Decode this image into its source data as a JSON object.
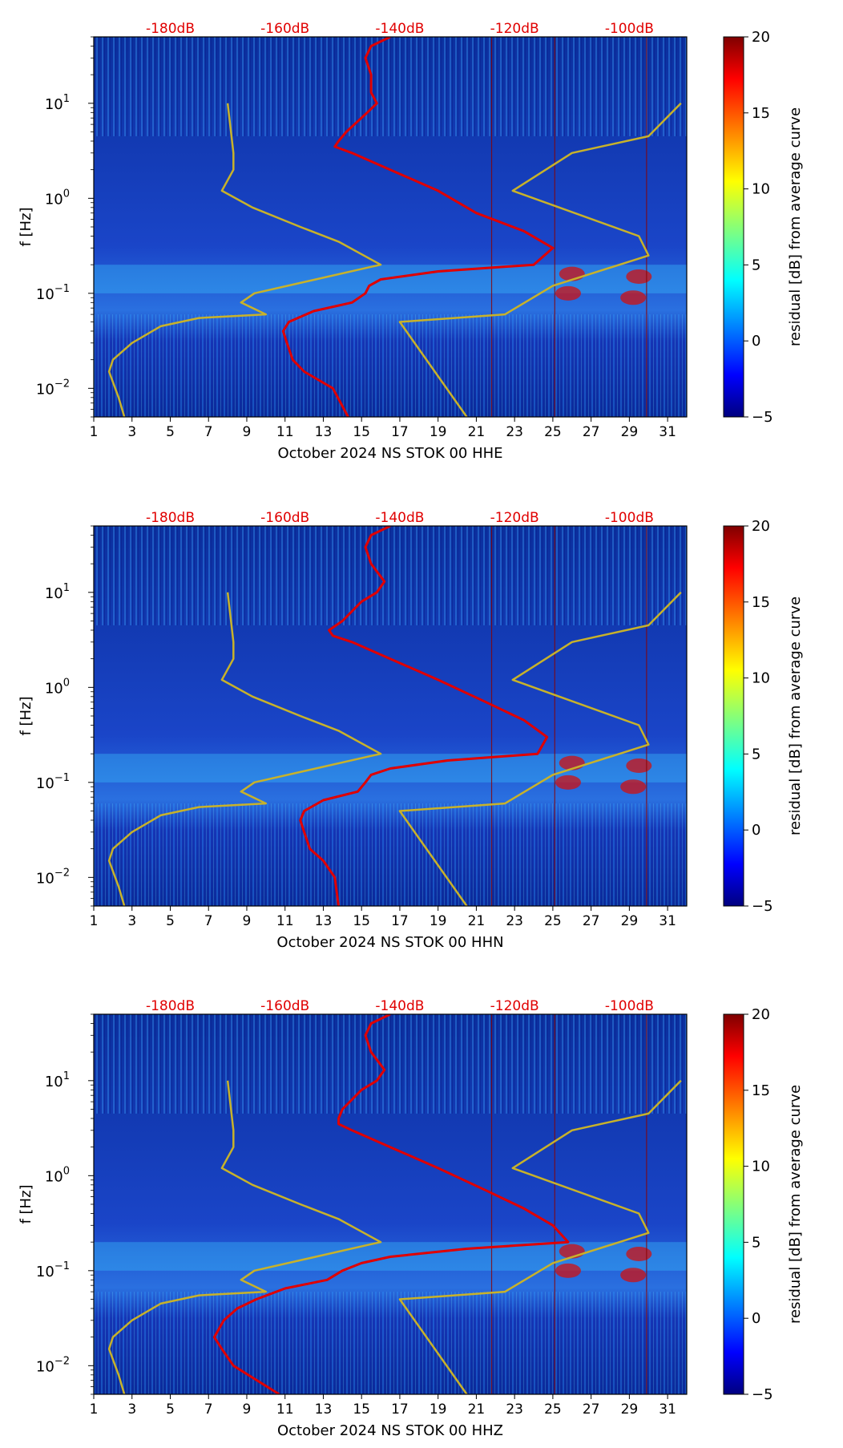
{
  "chart_data": [
    {
      "type": "heatmap",
      "xlabel": "October 2024 NS STOK 00 HHE",
      "ylabel": "f [Hz]",
      "x_ticks": [
        "1",
        "3",
        "5",
        "7",
        "9",
        "11",
        "13",
        "15",
        "17",
        "19",
        "21",
        "23",
        "25",
        "27",
        "29",
        "31"
      ],
      "y_ticks": [
        {
          "label": "10",
          "exp": "1",
          "value": 10
        },
        {
          "label": "10",
          "exp": "0",
          "value": 1
        },
        {
          "label": "10",
          "exp": "−1",
          "value": 0.1
        },
        {
          "label": "10",
          "exp": "−2",
          "value": 0.01
        }
      ],
      "top_labels": [
        "-180dB",
        "-160dB",
        "-140dB",
        "-120dB",
        "-100dB"
      ],
      "top_label_days": [
        5,
        11,
        17,
        23,
        29
      ],
      "xlim": [
        1,
        32
      ],
      "ylim": [
        0.005,
        50
      ],
      "colorbar": {
        "label": "residual [dB] from average curve",
        "ticks": [
          "20",
          "15",
          "10",
          "5",
          "0",
          "−5"
        ],
        "range": [
          -5,
          20
        ]
      },
      "series": [
        {
          "name": "average curve (red)",
          "color": "#e00000",
          "days": [
            16.5,
            15.5,
            15.2,
            15.5,
            15.5,
            15.8,
            15.3,
            14.2,
            13.8,
            13.6,
            14.5,
            16.5,
            19,
            21,
            23.5,
            25,
            24,
            19,
            16,
            15.4,
            15.2,
            14.5,
            12.5,
            11.2,
            10.9,
            11.1,
            11.4,
            12,
            13.5,
            14.3
          ],
          "freqs": [
            50,
            40,
            30,
            20,
            13,
            10,
            8,
            5,
            4,
            3.5,
            3,
            2,
            1.2,
            0.7,
            0.45,
            0.3,
            0.2,
            0.17,
            0.14,
            0.12,
            0.1,
            0.08,
            0.065,
            0.05,
            0.04,
            0.03,
            0.02,
            0.015,
            0.01,
            0.005
          ]
        },
        {
          "name": "model curve left (yellow)",
          "color": "#c8b22a",
          "days": [
            8.0,
            8.3,
            8.3,
            7.7,
            9.3,
            11.8,
            13.8,
            16.0,
            15.5,
            9.4,
            8.7,
            10.0,
            6.5,
            4.5,
            3.0,
            2.0,
            1.8,
            2.3,
            2.6
          ],
          "freqs": [
            10,
            3,
            2,
            1.2,
            0.8,
            0.5,
            0.35,
            0.2,
            0.19,
            0.1,
            0.08,
            0.06,
            0.055,
            0.045,
            0.03,
            0.02,
            0.015,
            0.008,
            0.005
          ]
        },
        {
          "name": "model curve right (yellow)",
          "color": "#c8b22a",
          "days": [
            31.7,
            30.0,
            26.0,
            22.9,
            29.5,
            30.0,
            25.0,
            22.5,
            17.0,
            20.5
          ],
          "freqs": [
            10,
            4.5,
            3,
            1.2,
            0.4,
            0.25,
            0.12,
            0.06,
            0.05,
            0.005
          ]
        }
      ]
    },
    {
      "type": "heatmap",
      "xlabel": "October 2024 NS STOK 00 HHN",
      "ylabel": "f [Hz]",
      "x_ticks": [
        "1",
        "3",
        "5",
        "7",
        "9",
        "11",
        "13",
        "15",
        "17",
        "19",
        "21",
        "23",
        "25",
        "27",
        "29",
        "31"
      ],
      "y_ticks": [
        {
          "label": "10",
          "exp": "1",
          "value": 10
        },
        {
          "label": "10",
          "exp": "0",
          "value": 1
        },
        {
          "label": "10",
          "exp": "−1",
          "value": 0.1
        },
        {
          "label": "10",
          "exp": "−2",
          "value": 0.01
        }
      ],
      "top_labels": [
        "-180dB",
        "-160dB",
        "-140dB",
        "-120dB",
        "-100dB"
      ],
      "top_label_days": [
        5,
        11,
        17,
        23,
        29
      ],
      "xlim": [
        1,
        32
      ],
      "ylim": [
        0.005,
        50
      ],
      "colorbar": {
        "label": "residual [dB] from average curve",
        "ticks": [
          "20",
          "15",
          "10",
          "5",
          "0",
          "−5"
        ],
        "range": [
          -5,
          20
        ]
      },
      "series": [
        {
          "name": "average curve (red)",
          "color": "#e00000",
          "days": [
            16.5,
            15.5,
            15.2,
            15.5,
            16.2,
            15.8,
            15.0,
            14.0,
            13.3,
            13.5,
            14.5,
            16.5,
            19,
            21.5,
            23.5,
            24.7,
            24.2,
            19.5,
            16.5,
            15.5,
            15.2,
            14.8,
            13.0,
            12.0,
            11.8,
            12.0,
            12.3,
            13.0,
            13.6,
            13.8
          ],
          "freqs": [
            50,
            40,
            30,
            20,
            13,
            10,
            8,
            5,
            4,
            3.5,
            3,
            2,
            1.2,
            0.7,
            0.45,
            0.3,
            0.2,
            0.17,
            0.14,
            0.12,
            0.1,
            0.08,
            0.065,
            0.05,
            0.04,
            0.03,
            0.02,
            0.015,
            0.01,
            0.005
          ]
        },
        {
          "name": "model curve left (yellow)",
          "color": "#c8b22a",
          "days": [
            8.0,
            8.3,
            8.3,
            7.7,
            9.3,
            11.8,
            13.8,
            16.0,
            15.5,
            9.4,
            8.7,
            10.0,
            6.5,
            4.5,
            3.0,
            2.0,
            1.8,
            2.3,
            2.6
          ],
          "freqs": [
            10,
            3,
            2,
            1.2,
            0.8,
            0.5,
            0.35,
            0.2,
            0.19,
            0.1,
            0.08,
            0.06,
            0.055,
            0.045,
            0.03,
            0.02,
            0.015,
            0.008,
            0.005
          ]
        },
        {
          "name": "model curve right (yellow)",
          "color": "#c8b22a",
          "days": [
            31.7,
            30.0,
            26.0,
            22.9,
            29.5,
            30.0,
            25.0,
            22.5,
            17.0,
            20.5
          ],
          "freqs": [
            10,
            4.5,
            3,
            1.2,
            0.4,
            0.25,
            0.12,
            0.06,
            0.05,
            0.005
          ]
        }
      ]
    },
    {
      "type": "heatmap",
      "xlabel": "October 2024 NS STOK 00 HHZ",
      "ylabel": "f [Hz]",
      "x_ticks": [
        "1",
        "3",
        "5",
        "7",
        "9",
        "11",
        "13",
        "15",
        "17",
        "19",
        "21",
        "23",
        "25",
        "27",
        "29",
        "31"
      ],
      "y_ticks": [
        {
          "label": "10",
          "exp": "1",
          "value": 10
        },
        {
          "label": "10",
          "exp": "0",
          "value": 1
        },
        {
          "label": "10",
          "exp": "−1",
          "value": 0.1
        },
        {
          "label": "10",
          "exp": "−2",
          "value": 0.01
        }
      ],
      "top_labels": [
        "-180dB",
        "-160dB",
        "-140dB",
        "-120dB",
        "-100dB"
      ],
      "top_label_days": [
        5,
        11,
        17,
        23,
        29
      ],
      "xlim": [
        1,
        32
      ],
      "ylim": [
        0.005,
        50
      ],
      "colorbar": {
        "label": "residual [dB] from average curve",
        "ticks": [
          "20",
          "15",
          "10",
          "5",
          "0",
          "−5"
        ],
        "range": [
          -5,
          20
        ]
      },
      "series": [
        {
          "name": "average curve (red)",
          "color": "#e00000",
          "days": [
            16.5,
            15.5,
            15.2,
            15.5,
            16.2,
            15.8,
            15.0,
            14.0,
            13.8,
            13.8,
            14.5,
            16.5,
            19,
            21.5,
            23.5,
            25,
            25.8,
            20.5,
            16.5,
            15,
            14,
            13.2,
            11.0,
            9.5,
            8.5,
            7.8,
            7.3,
            7.7,
            8.3,
            10.7
          ],
          "freqs": [
            50,
            40,
            30,
            20,
            13,
            10,
            8,
            5,
            4,
            3.5,
            3,
            2,
            1.2,
            0.7,
            0.45,
            0.3,
            0.2,
            0.17,
            0.14,
            0.12,
            0.1,
            0.08,
            0.065,
            0.05,
            0.04,
            0.03,
            0.02,
            0.015,
            0.01,
            0.005
          ]
        },
        {
          "name": "model curve left (yellow)",
          "color": "#c8b22a",
          "days": [
            8.0,
            8.3,
            8.3,
            7.7,
            9.3,
            11.8,
            13.8,
            16.0,
            15.5,
            9.4,
            8.7,
            10.0,
            6.5,
            4.5,
            3.0,
            2.0,
            1.8,
            2.3,
            2.6
          ],
          "freqs": [
            10,
            3,
            2,
            1.2,
            0.8,
            0.5,
            0.35,
            0.2,
            0.19,
            0.1,
            0.08,
            0.06,
            0.055,
            0.045,
            0.03,
            0.02,
            0.015,
            0.008,
            0.005
          ]
        },
        {
          "name": "model curve right (yellow)",
          "color": "#c8b22a",
          "days": [
            31.7,
            30.0,
            26.0,
            22.9,
            29.5,
            30.0,
            25.0,
            22.5,
            17.0,
            20.5
          ],
          "freqs": [
            10,
            4.5,
            3,
            1.2,
            0.4,
            0.25,
            0.12,
            0.06,
            0.05,
            0.005
          ]
        }
      ]
    }
  ]
}
